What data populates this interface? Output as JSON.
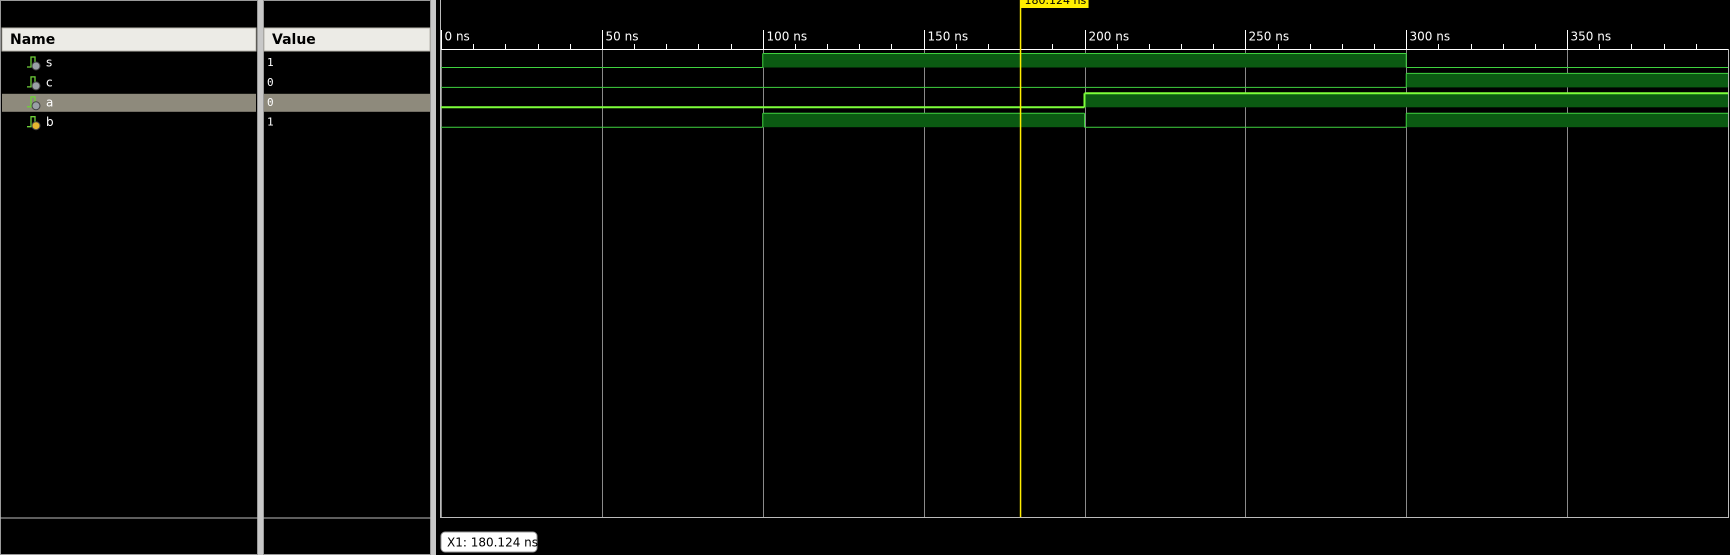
{
  "columns": {
    "name": "Name",
    "value": "Value"
  },
  "signals": [
    {
      "name": "s",
      "value": "1",
      "wave": [
        {
          "t": 0,
          "v": 0
        },
        {
          "t": 100,
          "v": 1
        },
        {
          "t": 300,
          "v": 0
        }
      ]
    },
    {
      "name": "c",
      "value": "0",
      "wave": [
        {
          "t": 0,
          "v": 0
        },
        {
          "t": 300,
          "v": 1
        }
      ]
    },
    {
      "name": "a",
      "value": "0",
      "selected": true,
      "wave": [
        {
          "t": 0,
          "v": 0
        },
        {
          "t": 200,
          "v": 1
        }
      ]
    },
    {
      "name": "b",
      "value": "1",
      "wave": [
        {
          "t": 0,
          "v": 0
        },
        {
          "t": 100,
          "v": 1
        },
        {
          "t": 200,
          "v": 0
        },
        {
          "t": 300,
          "v": 1
        }
      ]
    }
  ],
  "timeline": {
    "range": [
      0,
      400
    ],
    "ticks": [
      {
        "value": 0,
        "label": "0 ns"
      },
      {
        "value": 50,
        "label": "50 ns"
      },
      {
        "value": 100,
        "label": "100 ns"
      },
      {
        "value": 150,
        "label": "150 ns"
      },
      {
        "value": 200,
        "label": "200 ns"
      },
      {
        "value": 250,
        "label": "250 ns"
      },
      {
        "value": 300,
        "label": "300 ns"
      },
      {
        "value": 350,
        "label": "350 ns"
      }
    ]
  },
  "cursor": {
    "time": 180.124,
    "label": "180.124 ns",
    "readout": "X1: 180.124 ns"
  }
}
